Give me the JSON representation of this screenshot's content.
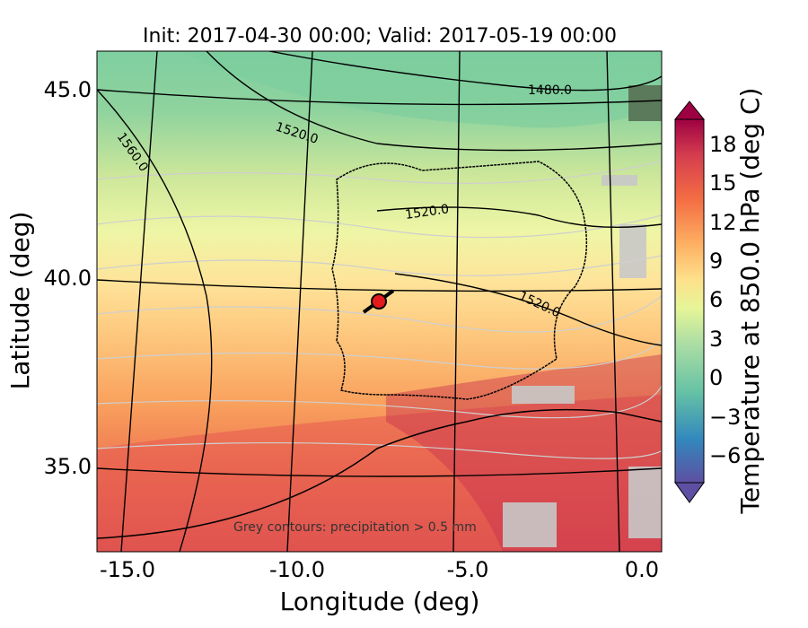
{
  "title": "Init: 2017-04-30 00:00; Valid: 2017-05-19 00:00",
  "axes": {
    "xlabel": "Longitude (deg)",
    "ylabel": "Latitude (deg)",
    "xticks": [
      "-15.0",
      "-10.0",
      "-5.0",
      "0.0"
    ],
    "yticks": [
      "45.0",
      "40.0",
      "35.0"
    ]
  },
  "colorbar": {
    "label": "Temperature at 850.0 hPa (deg C)",
    "ticks": [
      "18",
      "15",
      "12",
      "9",
      "6",
      "3",
      "0",
      "−3",
      "−6"
    ]
  },
  "contour_labels": [
    "1480.0",
    "1520.0",
    "1560.0",
    "1520.0",
    "1520.0"
  ],
  "annotation": "Grey contours: precipitation > 0.5 mm",
  "marker": {
    "lon": -7.6,
    "lat": 39.3,
    "color": "#e41a1c"
  },
  "colors": {
    "cold": "#5e4fa2",
    "cool": "#66c2a5",
    "mild": "#e6f598",
    "warm": "#fdae61",
    "hot": "#d53e4f",
    "hottest": "#9e0142"
  },
  "chart_data": {
    "type": "heatmap",
    "variable": "Temperature at 850.0 hPa",
    "units": "deg C",
    "xlim": [
      -16.0,
      0.3
    ],
    "ylim": [
      32.4,
      46.0
    ],
    "colorbar_range": [
      -8,
      20
    ],
    "geopotential_contours": [
      1480,
      1520,
      1560
    ],
    "precip_threshold_mm": 0.5
  }
}
